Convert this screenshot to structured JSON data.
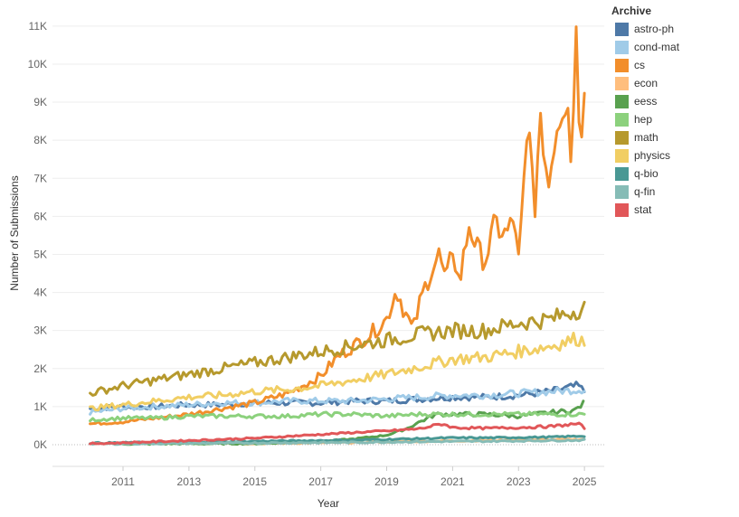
{
  "chart_data": {
    "type": "line",
    "title": "",
    "xlabel": "Year",
    "ylabel": "Number of Submissions",
    "x_ticks": [
      "2011",
      "2013",
      "2015",
      "2017",
      "2019",
      "2021",
      "2023",
      "2025"
    ],
    "y_ticks": [
      "0K",
      "1K",
      "2K",
      "3K",
      "4K",
      "5K",
      "6K",
      "7K",
      "8K",
      "9K",
      "10K",
      "11K"
    ],
    "xlim": [
      2009.6,
      2025.6
    ],
    "ylim": [
      0,
      11400
    ],
    "grid": "horizontal",
    "legend_title": "Archive",
    "legend_position": "right",
    "series": [
      {
        "name": "astro-ph",
        "color": "#4e79a7",
        "start": 2010.0,
        "points": [
          [
            2010.0,
            950
          ],
          [
            2011,
            1000
          ],
          [
            2012,
            1000
          ],
          [
            2013,
            1050
          ],
          [
            2014,
            1050
          ],
          [
            2015,
            1100
          ],
          [
            2016,
            1100
          ],
          [
            2017,
            1100
          ],
          [
            2018,
            1150
          ],
          [
            2019,
            1150
          ],
          [
            2020,
            1200
          ],
          [
            2021,
            1250
          ],
          [
            2022,
            1250
          ],
          [
            2023,
            1300
          ],
          [
            2024,
            1400
          ],
          [
            2024.8,
            1550
          ],
          [
            2025.0,
            1400
          ]
        ]
      },
      {
        "name": "cond-mat",
        "color": "#a0cbe8",
        "start": 2010.0,
        "points": [
          [
            2010.0,
            850
          ],
          [
            2011,
            950
          ],
          [
            2012,
            1000
          ],
          [
            2013,
            1050
          ],
          [
            2014,
            1100
          ],
          [
            2015,
            1100
          ],
          [
            2016,
            1150
          ],
          [
            2017,
            1150
          ],
          [
            2018,
            1150
          ],
          [
            2019,
            1200
          ],
          [
            2020,
            1250
          ],
          [
            2021,
            1300
          ],
          [
            2022,
            1300
          ],
          [
            2023,
            1350
          ],
          [
            2024,
            1400
          ],
          [
            2025.0,
            1450
          ]
        ]
      },
      {
        "name": "cs",
        "color": "#f28e2b",
        "start": 2010.0,
        "points": [
          [
            2010.0,
            550
          ],
          [
            2011,
            600
          ],
          [
            2012,
            700
          ],
          [
            2013,
            800
          ],
          [
            2014,
            950
          ],
          [
            2015,
            1100
          ],
          [
            2016,
            1350
          ],
          [
            2017,
            1800
          ],
          [
            2017.5,
            2300
          ],
          [
            2018,
            2600
          ],
          [
            2018.5,
            2900
          ],
          [
            2019,
            3300
          ],
          [
            2019.3,
            4100
          ],
          [
            2019.5,
            3600
          ],
          [
            2019.8,
            3000
          ],
          [
            2020.0,
            3700
          ],
          [
            2020.3,
            4500
          ],
          [
            2020.6,
            5000
          ],
          [
            2020.8,
            4200
          ],
          [
            2021.0,
            5200
          ],
          [
            2021.2,
            4200
          ],
          [
            2021.5,
            5800
          ],
          [
            2021.8,
            5000
          ],
          [
            2022.0,
            4900
          ],
          [
            2022.3,
            5800
          ],
          [
            2022.6,
            5500
          ],
          [
            2022.9,
            5900
          ],
          [
            2023.0,
            4800
          ],
          [
            2023.3,
            8300
          ],
          [
            2023.5,
            6400
          ],
          [
            2023.7,
            8500
          ],
          [
            2023.9,
            6700
          ],
          [
            2024.1,
            8200
          ],
          [
            2024.3,
            8800
          ],
          [
            2024.5,
            9300
          ],
          [
            2024.6,
            7500
          ],
          [
            2024.75,
            11000
          ],
          [
            2024.85,
            8200
          ],
          [
            2025.0,
            9000
          ]
        ]
      },
      {
        "name": "econ",
        "color": "#ffbe7d",
        "start": 2014.7,
        "points": [
          [
            2014.7,
            30
          ],
          [
            2016,
            40
          ],
          [
            2018,
            60
          ],
          [
            2020,
            90
          ],
          [
            2022,
            110
          ],
          [
            2024,
            130
          ],
          [
            2025.0,
            140
          ]
        ]
      },
      {
        "name": "eess",
        "color": "#59a14f",
        "start": 2010.8,
        "points": [
          [
            2010.8,
            20
          ],
          [
            2013,
            25
          ],
          [
            2015,
            30
          ],
          [
            2017,
            80
          ],
          [
            2018,
            150
          ],
          [
            2019,
            250
          ],
          [
            2019.6,
            420
          ],
          [
            2020,
            600
          ],
          [
            2020.5,
            800
          ],
          [
            2021,
            800
          ],
          [
            2022,
            800
          ],
          [
            2023,
            750
          ],
          [
            2024,
            850
          ],
          [
            2024.7,
            900
          ],
          [
            2025.0,
            1100
          ]
        ]
      },
      {
        "name": "hep",
        "color": "#8cd17d",
        "start": 2010.0,
        "points": [
          [
            2010.0,
            650
          ],
          [
            2011,
            700
          ],
          [
            2012,
            700
          ],
          [
            2013,
            750
          ],
          [
            2014,
            750
          ],
          [
            2015,
            750
          ],
          [
            2016,
            750
          ],
          [
            2017,
            800
          ],
          [
            2018,
            800
          ],
          [
            2019,
            750
          ],
          [
            2020,
            800
          ],
          [
            2021,
            800
          ],
          [
            2022,
            800
          ],
          [
            2023,
            800
          ],
          [
            2024,
            800
          ],
          [
            2025.0,
            800
          ]
        ]
      },
      {
        "name": "math",
        "color": "#b6992d",
        "start": 2010.0,
        "points": [
          [
            2010.0,
            1350
          ],
          [
            2011,
            1550
          ],
          [
            2012,
            1700
          ],
          [
            2013,
            1850
          ],
          [
            2014,
            2000
          ],
          [
            2015,
            2150
          ],
          [
            2016,
            2300
          ],
          [
            2017,
            2450
          ],
          [
            2018,
            2600
          ],
          [
            2019,
            2750
          ],
          [
            2020,
            2900
          ],
          [
            2021,
            3000
          ],
          [
            2022,
            3000
          ],
          [
            2023,
            3200
          ],
          [
            2024,
            3300
          ],
          [
            2024.6,
            3500
          ],
          [
            2025.0,
            3600
          ]
        ]
      },
      {
        "name": "physics",
        "color": "#f1ce63",
        "start": 2010.0,
        "points": [
          [
            2010.0,
            950
          ],
          [
            2011,
            1050
          ],
          [
            2012,
            1150
          ],
          [
            2013,
            1250
          ],
          [
            2014,
            1300
          ],
          [
            2015,
            1400
          ],
          [
            2016,
            1450
          ],
          [
            2017,
            1550
          ],
          [
            2018,
            1700
          ],
          [
            2019,
            1850
          ],
          [
            2020,
            2050
          ],
          [
            2021,
            2250
          ],
          [
            2022,
            2300
          ],
          [
            2023,
            2450
          ],
          [
            2024,
            2600
          ],
          [
            2024.8,
            2800
          ],
          [
            2025.0,
            2700
          ]
        ]
      },
      {
        "name": "q-bio",
        "color": "#499894",
        "start": 2010.0,
        "points": [
          [
            2010.0,
            40
          ],
          [
            2012,
            60
          ],
          [
            2014,
            80
          ],
          [
            2016,
            100
          ],
          [
            2018,
            120
          ],
          [
            2020,
            160
          ],
          [
            2021,
            180
          ],
          [
            2022,
            180
          ],
          [
            2023,
            190
          ],
          [
            2024,
            200
          ],
          [
            2025.0,
            230
          ]
        ]
      },
      {
        "name": "q-fin",
        "color": "#86bcb6",
        "start": 2010.0,
        "points": [
          [
            2010.0,
            20
          ],
          [
            2012,
            30
          ],
          [
            2014,
            40
          ],
          [
            2016,
            50
          ],
          [
            2018,
            60
          ],
          [
            2020,
            80
          ],
          [
            2022,
            90
          ],
          [
            2024,
            110
          ],
          [
            2025.0,
            120
          ]
        ]
      },
      {
        "name": "stat",
        "color": "#e15759",
        "start": 2010.0,
        "points": [
          [
            2010.0,
            30
          ],
          [
            2011,
            50
          ],
          [
            2012,
            80
          ],
          [
            2013,
            110
          ],
          [
            2014,
            140
          ],
          [
            2015,
            170
          ],
          [
            2016,
            220
          ],
          [
            2017,
            270
          ],
          [
            2018,
            320
          ],
          [
            2019,
            360
          ],
          [
            2020,
            420
          ],
          [
            2020.7,
            550
          ],
          [
            2021,
            450
          ],
          [
            2022,
            430
          ],
          [
            2023,
            450
          ],
          [
            2024,
            480
          ],
          [
            2024.8,
            550
          ],
          [
            2025.0,
            450
          ]
        ]
      }
    ]
  }
}
